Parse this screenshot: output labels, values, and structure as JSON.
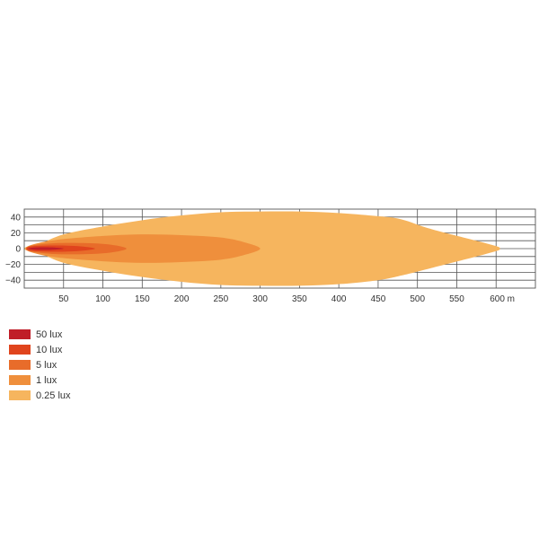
{
  "chart_data": {
    "type": "area",
    "title": "",
    "xlabel": "",
    "ylabel": "",
    "xlim": [
      0,
      650
    ],
    "ylim": [
      -50,
      50
    ],
    "x_ticks": [
      50,
      100,
      150,
      200,
      250,
      300,
      350,
      400,
      450,
      500,
      550,
      600
    ],
    "x_tick_labels": [
      "50",
      "100",
      "150",
      "200",
      "250",
      "300",
      "350",
      "400",
      "450",
      "500",
      "550",
      "600 m"
    ],
    "y_ticks": [
      40,
      20,
      0,
      -20,
      -40
    ],
    "y_tick_labels": [
      "40",
      "20",
      "0",
      "−20",
      "−40"
    ],
    "grid": true,
    "legend": "bottom-left",
    "series": [
      {
        "name": "0.25 lux",
        "color": "#f6b55e",
        "upper": [
          [
            0,
            0
          ],
          [
            5,
            3
          ],
          [
            20,
            6
          ],
          [
            50,
            18
          ],
          [
            100,
            28
          ],
          [
            150,
            36
          ],
          [
            200,
            42
          ],
          [
            250,
            46
          ],
          [
            300,
            47
          ],
          [
            350,
            47
          ],
          [
            400,
            45
          ],
          [
            450,
            41
          ],
          [
            480,
            37
          ],
          [
            520,
            24
          ],
          [
            590,
            6
          ],
          [
            605,
            0
          ]
        ],
        "lower": [
          [
            0,
            0
          ],
          [
            5,
            -3
          ],
          [
            20,
            -6
          ],
          [
            50,
            -18
          ],
          [
            100,
            -28
          ],
          [
            150,
            -36
          ],
          [
            200,
            -42
          ],
          [
            250,
            -46
          ],
          [
            300,
            -47
          ],
          [
            350,
            -47
          ],
          [
            400,
            -45
          ],
          [
            450,
            -40
          ],
          [
            480,
            -34
          ],
          [
            520,
            -24
          ],
          [
            590,
            -6
          ],
          [
            605,
            0
          ]
        ]
      },
      {
        "name": "1 lux",
        "color": "#ef8f3c",
        "upper": [
          [
            2,
            0
          ],
          [
            10,
            5
          ],
          [
            40,
            11
          ],
          [
            100,
            16
          ],
          [
            150,
            18
          ],
          [
            200,
            17
          ],
          [
            250,
            14
          ],
          [
            280,
            8
          ],
          [
            300,
            0
          ]
        ],
        "lower": [
          [
            2,
            0
          ],
          [
            10,
            -5
          ],
          [
            40,
            -11
          ],
          [
            100,
            -16
          ],
          [
            150,
            -18
          ],
          [
            200,
            -17
          ],
          [
            250,
            -14
          ],
          [
            280,
            -8
          ],
          [
            300,
            0
          ]
        ]
      },
      {
        "name": "5 lux",
        "color": "#e86c2a",
        "upper": [
          [
            2,
            0
          ],
          [
            10,
            4
          ],
          [
            40,
            7
          ],
          [
            80,
            7
          ],
          [
            110,
            5
          ],
          [
            130,
            0
          ]
        ],
        "lower": [
          [
            2,
            0
          ],
          [
            10,
            -4
          ],
          [
            40,
            -7
          ],
          [
            80,
            -7
          ],
          [
            110,
            -5
          ],
          [
            130,
            0
          ]
        ]
      },
      {
        "name": "10 lux",
        "color": "#e0441d",
        "upper": [
          [
            3,
            0
          ],
          [
            10,
            3
          ],
          [
            40,
            4
          ],
          [
            70,
            3
          ],
          [
            90,
            0
          ]
        ],
        "lower": [
          [
            3,
            0
          ],
          [
            10,
            -3
          ],
          [
            40,
            -4
          ],
          [
            70,
            -3
          ],
          [
            90,
            0
          ]
        ]
      },
      {
        "name": "50 lux",
        "color": "#c01d28",
        "upper": [
          [
            5,
            0
          ],
          [
            15,
            1.5
          ],
          [
            35,
            1.5
          ],
          [
            50,
            0
          ]
        ],
        "lower": [
          [
            5,
            0
          ],
          [
            15,
            -1.5
          ],
          [
            35,
            -1.5
          ],
          [
            50,
            0
          ]
        ]
      }
    ]
  },
  "legend": {
    "items": [
      {
        "label": "50 lux",
        "color": "#c01d28"
      },
      {
        "label": "10 lux",
        "color": "#e0441d"
      },
      {
        "label": "5 lux",
        "color": "#e86c2a"
      },
      {
        "label": "1 lux",
        "color": "#ef8f3c"
      },
      {
        "label": "0.25 lux",
        "color": "#f6b55e"
      }
    ]
  }
}
